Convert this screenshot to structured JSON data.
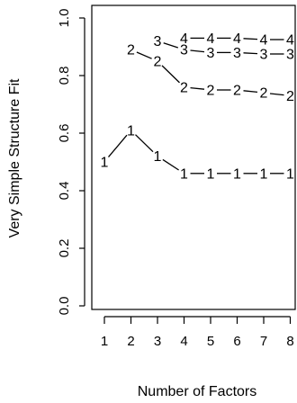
{
  "chart_data": {
    "type": "line",
    "xlabel": "Number of Factors",
    "ylabel": "Very Simple Structure Fit",
    "x": [
      1,
      2,
      3,
      4,
      5,
      6,
      7,
      8
    ],
    "xlim": [
      1,
      8
    ],
    "ylim": [
      0,
      1
    ],
    "y_ticks": [
      "0.0",
      "0.2",
      "0.4",
      "0.6",
      "0.8",
      "1.0"
    ],
    "x_ticks": [
      "1",
      "2",
      "3",
      "4",
      "5",
      "6",
      "7",
      "8"
    ],
    "grid": false,
    "series": [
      {
        "marker": "1",
        "x": [
          1,
          2,
          3,
          4,
          5,
          6,
          7,
          8
        ],
        "values": [
          0.5,
          0.61,
          0.52,
          0.46,
          0.46,
          0.46,
          0.46,
          0.46
        ]
      },
      {
        "marker": "2",
        "x": [
          2,
          3,
          4,
          5,
          6,
          7,
          8
        ],
        "values": [
          0.89,
          0.85,
          0.76,
          0.75,
          0.75,
          0.74,
          0.73
        ]
      },
      {
        "marker": "3",
        "x": [
          3,
          4,
          5,
          6,
          7,
          8
        ],
        "values": [
          0.92,
          0.89,
          0.88,
          0.88,
          0.875,
          0.875
        ]
      },
      {
        "marker": "4",
        "x": [
          4,
          5,
          6,
          7,
          8
        ],
        "values": [
          0.93,
          0.93,
          0.93,
          0.925,
          0.925
        ]
      }
    ]
  }
}
